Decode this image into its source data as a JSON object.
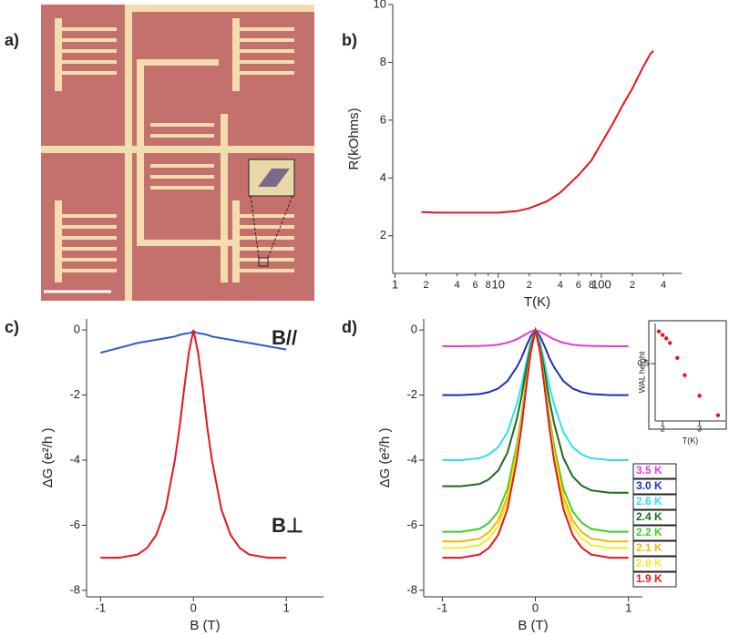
{
  "panel_labels": [
    "a)",
    "b)",
    "c)",
    "d)"
  ],
  "chart_data": [
    {
      "type": "line",
      "xscale": "log",
      "xlabel": "T(K)",
      "ylabel": "R(kOhms)",
      "xlim": [
        0.95,
        600
      ],
      "ylim": [
        0.7,
        10
      ],
      "xticks": [
        1,
        {
          "value": 2,
          "label": "2"
        },
        {
          "value": 4,
          "label": "4"
        },
        {
          "value": 6,
          "label": "6"
        },
        {
          "value": 8,
          "label": "8"
        },
        10,
        {
          "value": 20,
          "label": "2"
        },
        {
          "value": 40,
          "label": "4"
        },
        {
          "value": 60,
          "label": "6"
        },
        {
          "value": 80,
          "label": "8"
        },
        100,
        {
          "value": 200,
          "label": "2"
        },
        {
          "value": 400,
          "label": "4"
        }
      ],
      "yticks": [
        2,
        4,
        6,
        8,
        10
      ],
      "x": [
        1.8,
        2.5,
        4,
        6,
        10,
        15,
        20,
        30,
        40,
        60,
        80,
        100,
        130,
        160,
        200,
        250,
        300,
        320
      ],
      "series": [
        {
          "color": "#e8141b",
          "values": [
            2.82,
            2.8,
            2.8,
            2.8,
            2.8,
            2.85,
            2.95,
            3.2,
            3.5,
            4.1,
            4.6,
            5.2,
            5.9,
            6.5,
            7.1,
            7.8,
            8.3,
            8.4
          ]
        }
      ]
    },
    {
      "type": "line",
      "xlabel": "B (T)",
      "ylabel": "ΔG (e²/h )",
      "xlim": [
        -1.15,
        1.4
      ],
      "ylim": [
        -8.2,
        0.34
      ],
      "xticks": [
        -1,
        0,
        1
      ],
      "yticks": [
        0,
        -2,
        -4,
        -6,
        -8
      ],
      "annotations": [
        "B//",
        "B⊥"
      ],
      "x": [
        -1,
        -0.8,
        -0.6,
        -0.5,
        -0.4,
        -0.3,
        -0.2,
        -0.15,
        -0.1,
        -0.05,
        0,
        0.05,
        0.1,
        0.15,
        0.2,
        0.3,
        0.4,
        0.5,
        0.6,
        0.8,
        1
      ],
      "series": [
        {
          "color": "#2a5bd7",
          "values": [
            -0.7,
            -0.55,
            -0.4,
            -0.35,
            -0.3,
            -0.25,
            -0.2,
            -0.15,
            -0.12,
            -0.1,
            -0.05,
            -0.1,
            -0.12,
            -0.15,
            -0.2,
            -0.25,
            -0.3,
            -0.35,
            -0.4,
            -0.5,
            -0.6
          ]
        },
        {
          "color": "#e8141b",
          "values": [
            -7.0,
            -7.0,
            -6.9,
            -6.7,
            -6.3,
            -5.5,
            -4.0,
            -3.0,
            -1.8,
            -0.7,
            0,
            -0.7,
            -1.8,
            -3.0,
            -4.0,
            -5.5,
            -6.3,
            -6.7,
            -6.9,
            -7.0,
            -7.0
          ]
        }
      ]
    },
    {
      "type": "line",
      "xlabel": "B (T)",
      "ylabel": "ΔG (e²/h )",
      "xlim": [
        -1.2,
        1.15
      ],
      "ylim": [
        -8.2,
        0.34
      ],
      "xticks": [
        -1,
        0,
        1
      ],
      "yticks": [
        0,
        -2,
        -4,
        -6,
        -8
      ],
      "x": [
        -1,
        -0.8,
        -0.6,
        -0.5,
        -0.4,
        -0.3,
        -0.2,
        -0.15,
        -0.1,
        -0.05,
        0,
        0.05,
        0.1,
        0.15,
        0.2,
        0.3,
        0.4,
        0.5,
        0.6,
        0.8,
        1
      ],
      "series": [
        {
          "name": "3.5 K",
          "color": "#e83ad8",
          "values": [
            -0.5,
            -0.5,
            -0.49,
            -0.48,
            -0.45,
            -0.39,
            -0.29,
            -0.21,
            -0.13,
            -0.05,
            0,
            -0.05,
            -0.13,
            -0.21,
            -0.29,
            -0.39,
            -0.45,
            -0.48,
            -0.49,
            -0.5,
            -0.5
          ]
        },
        {
          "name": "3.0 K",
          "color": "#1a2fc0",
          "values": [
            -2,
            -2,
            -1.97,
            -1.91,
            -1.8,
            -1.57,
            -1.14,
            -0.86,
            -0.51,
            -0.2,
            0,
            -0.2,
            -0.51,
            -0.86,
            -1.14,
            -1.57,
            -1.8,
            -1.91,
            -1.97,
            -2,
            -2
          ]
        },
        {
          "name": "2.6 K",
          "color": "#2be0f0",
          "values": [
            -4,
            -4,
            -3.94,
            -3.83,
            -3.6,
            -3.14,
            -2.28,
            -1.72,
            -1.03,
            -0.4,
            0,
            -0.4,
            -1.03,
            -1.72,
            -2.28,
            -3.14,
            -3.6,
            -3.83,
            -3.94,
            -4,
            -4
          ]
        },
        {
          "name": "2.4 K",
          "color": "#1a6b1a",
          "values": [
            -4.8,
            -4.8,
            -4.73,
            -4.59,
            -4.32,
            -3.77,
            -2.74,
            -2.06,
            -1.23,
            -0.48,
            0,
            -0.5,
            -1.29,
            -2.15,
            -2.86,
            -3.93,
            -4.5,
            -4.79,
            -4.93,
            -5,
            -5
          ]
        },
        {
          "name": "2.2 K",
          "color": "#3fd11f",
          "values": [
            -6.2,
            -6.2,
            -6.11,
            -5.93,
            -5.58,
            -4.87,
            -3.54,
            -2.66,
            -1.59,
            -0.62,
            0,
            -0.62,
            -1.59,
            -2.66,
            -3.54,
            -4.87,
            -5.58,
            -5.93,
            -6.11,
            -6.2,
            -6.2
          ]
        },
        {
          "name": "2.1 K",
          "color": "#f0b800",
          "values": [
            -6.5,
            -6.5,
            -6.41,
            -6.22,
            -5.85,
            -5.11,
            -3.71,
            -2.79,
            -1.67,
            -0.65,
            0,
            -0.65,
            -1.67,
            -2.79,
            -3.71,
            -5.11,
            -5.85,
            -6.22,
            -6.41,
            -6.5,
            -6.5
          ]
        },
        {
          "name": "2.0 K",
          "color": "#eeee1a",
          "values": [
            -6.7,
            -6.7,
            -6.61,
            -6.41,
            -6.03,
            -5.27,
            -3.83,
            -2.87,
            -1.72,
            -0.67,
            0,
            -0.67,
            -1.72,
            -2.87,
            -3.83,
            -5.27,
            -6.03,
            -6.41,
            -6.61,
            -6.7,
            -6.7
          ]
        },
        {
          "name": "1.9 K",
          "color": "#e8141b",
          "values": [
            -7.0,
            -7.0,
            -6.9,
            -6.7,
            -6.3,
            -5.5,
            -4.0,
            -3.0,
            -1.8,
            -0.7,
            0,
            -0.7,
            -1.8,
            -3.0,
            -4.0,
            -5.5,
            -6.3,
            -6.7,
            -6.9,
            -7.0,
            -7.0
          ]
        }
      ]
    },
    {
      "type": "scatter",
      "xlabel": "T(K)",
      "ylabel": "WAL height",
      "xlim": [
        1.8,
        3.7
      ],
      "ylim": [
        0,
        0.85
      ],
      "xticks": [
        2,
        3
      ],
      "yticks": [
        0.5
      ],
      "x": [
        1.9,
        2.0,
        2.1,
        2.2,
        2.4,
        2.6,
        3.0,
        3.5
      ],
      "series": [
        {
          "color": "#e8141b",
          "values": [
            0.78,
            0.75,
            0.72,
            0.68,
            0.55,
            0.4,
            0.22,
            0.05
          ]
        }
      ]
    }
  ]
}
